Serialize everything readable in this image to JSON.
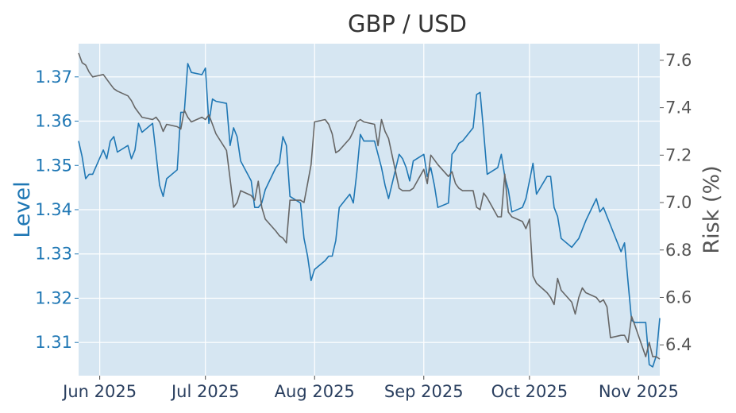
{
  "chart_data": {
    "type": "line",
    "title": "GBP / USD",
    "xlabel": "",
    "ylabel_left": "Level",
    "ylabel_right": "Risk (%)",
    "x_tick_labels": [
      "Jun 2025",
      "Jul 2025",
      "Aug 2025",
      "Sep 2025",
      "Oct 2025",
      "Nov 2025"
    ],
    "x_tick_dates": [
      "2025-06-01",
      "2025-07-01",
      "2025-08-01",
      "2025-09-01",
      "2025-10-01",
      "2025-11-01"
    ],
    "xlim": [
      "2025-05-26",
      "2025-11-07"
    ],
    "ylim_left": [
      1.3025,
      1.3775
    ],
    "ylim_right": [
      6.27,
      7.67
    ],
    "y_ticks_left": [
      "1.31",
      "1.32",
      "1.33",
      "1.34",
      "1.35",
      "1.36",
      "1.37"
    ],
    "y_ticks_right": [
      "6.4",
      "6.6",
      "6.8",
      "7.0",
      "7.2",
      "7.4",
      "7.6"
    ],
    "grid": true,
    "legend": "none",
    "colors": {
      "level": "#1f77b4",
      "risk": "#666666",
      "plot_bg": "#d6e6f2",
      "left_axis": "#1f77b4",
      "right_axis": "#555555"
    },
    "series": [
      {
        "axis": "left",
        "points": [
          [
            "2025-05-26",
            1.3555
          ],
          [
            "2025-05-27",
            1.352
          ],
          [
            "2025-05-28",
            1.347
          ],
          [
            "2025-05-29",
            1.348
          ],
          [
            "2025-05-30",
            1.348
          ],
          [
            "2025-06-02",
            1.3535
          ],
          [
            "2025-06-03",
            1.3515
          ],
          [
            "2025-06-04",
            1.3555
          ],
          [
            "2025-06-05",
            1.3565
          ],
          [
            "2025-06-06",
            1.353
          ],
          [
            "2025-06-09",
            1.3545
          ],
          [
            "2025-06-10",
            1.3515
          ],
          [
            "2025-06-11",
            1.3535
          ],
          [
            "2025-06-12",
            1.3595
          ],
          [
            "2025-06-13",
            1.3575
          ],
          [
            "2025-06-16",
            1.3595
          ],
          [
            "2025-06-17",
            1.3525
          ],
          [
            "2025-06-18",
            1.3455
          ],
          [
            "2025-06-19",
            1.343
          ],
          [
            "2025-06-20",
            1.347
          ],
          [
            "2025-06-23",
            1.349
          ],
          [
            "2025-06-24",
            1.362
          ],
          [
            "2025-06-25",
            1.362
          ],
          [
            "2025-06-26",
            1.373
          ],
          [
            "2025-06-27",
            1.371
          ],
          [
            "2025-06-30",
            1.3705
          ],
          [
            "2025-07-01",
            1.372
          ],
          [
            "2025-07-02",
            1.3595
          ],
          [
            "2025-07-03",
            1.365
          ],
          [
            "2025-07-04",
            1.3645
          ],
          [
            "2025-07-07",
            1.364
          ],
          [
            "2025-07-08",
            1.3545
          ],
          [
            "2025-07-09",
            1.3585
          ],
          [
            "2025-07-10",
            1.3565
          ],
          [
            "2025-07-11",
            1.351
          ],
          [
            "2025-07-14",
            1.3465
          ],
          [
            "2025-07-15",
            1.3405
          ],
          [
            "2025-07-16",
            1.3405
          ],
          [
            "2025-07-17",
            1.3415
          ],
          [
            "2025-07-18",
            1.3445
          ],
          [
            "2025-07-21",
            1.3495
          ],
          [
            "2025-07-22",
            1.3505
          ],
          [
            "2025-07-23",
            1.3565
          ],
          [
            "2025-07-24",
            1.3545
          ],
          [
            "2025-07-25",
            1.343
          ],
          [
            "2025-07-28",
            1.3415
          ],
          [
            "2025-07-29",
            1.3335
          ],
          [
            "2025-07-30",
            1.3295
          ],
          [
            "2025-07-31",
            1.324
          ],
          [
            "2025-08-01",
            1.3265
          ],
          [
            "2025-08-04",
            1.3285
          ],
          [
            "2025-08-05",
            1.3295
          ],
          [
            "2025-08-06",
            1.3295
          ],
          [
            "2025-08-07",
            1.333
          ],
          [
            "2025-08-08",
            1.3405
          ],
          [
            "2025-08-11",
            1.3435
          ],
          [
            "2025-08-12",
            1.3415
          ],
          [
            "2025-08-13",
            1.3485
          ],
          [
            "2025-08-14",
            1.357
          ],
          [
            "2025-08-15",
            1.3555
          ],
          [
            "2025-08-18",
            1.3555
          ],
          [
            "2025-08-19",
            1.3525
          ],
          [
            "2025-08-20",
            1.3495
          ],
          [
            "2025-08-21",
            1.3455
          ],
          [
            "2025-08-22",
            1.3425
          ],
          [
            "2025-08-25",
            1.3525
          ],
          [
            "2025-08-26",
            1.3515
          ],
          [
            "2025-08-27",
            1.3495
          ],
          [
            "2025-08-28",
            1.3465
          ],
          [
            "2025-08-29",
            1.351
          ],
          [
            "2025-09-01",
            1.3525
          ],
          [
            "2025-09-02",
            1.3475
          ],
          [
            "2025-09-03",
            1.3495
          ],
          [
            "2025-09-04",
            1.3455
          ],
          [
            "2025-09-05",
            1.3405
          ],
          [
            "2025-09-08",
            1.3415
          ],
          [
            "2025-09-09",
            1.3525
          ],
          [
            "2025-09-10",
            1.3535
          ],
          [
            "2025-09-11",
            1.355
          ],
          [
            "2025-09-12",
            1.3555
          ],
          [
            "2025-09-15",
            1.3585
          ],
          [
            "2025-09-16",
            1.366
          ],
          [
            "2025-09-17",
            1.3665
          ],
          [
            "2025-09-18",
            1.3575
          ],
          [
            "2025-09-19",
            1.348
          ],
          [
            "2025-09-22",
            1.3495
          ],
          [
            "2025-09-23",
            1.3525
          ],
          [
            "2025-09-24",
            1.3475
          ],
          [
            "2025-09-25",
            1.3445
          ],
          [
            "2025-09-26",
            1.3395
          ],
          [
            "2025-09-29",
            1.3405
          ],
          [
            "2025-09-30",
            1.3425
          ],
          [
            "2025-10-01",
            1.3465
          ],
          [
            "2025-10-02",
            1.3505
          ],
          [
            "2025-10-03",
            1.3435
          ],
          [
            "2025-10-06",
            1.3475
          ],
          [
            "2025-10-07",
            1.3475
          ],
          [
            "2025-10-08",
            1.3405
          ],
          [
            "2025-10-09",
            1.3385
          ],
          [
            "2025-10-10",
            1.3335
          ],
          [
            "2025-10-13",
            1.3315
          ],
          [
            "2025-10-14",
            1.3325
          ],
          [
            "2025-10-15",
            1.3335
          ],
          [
            "2025-10-16",
            1.3355
          ],
          [
            "2025-10-17",
            1.3375
          ],
          [
            "2025-10-20",
            1.3425
          ],
          [
            "2025-10-21",
            1.3395
          ],
          [
            "2025-10-22",
            1.3405
          ],
          [
            "2025-10-23",
            1.3385
          ],
          [
            "2025-10-24",
            1.3365
          ],
          [
            "2025-10-27",
            1.3305
          ],
          [
            "2025-10-28",
            1.3325
          ],
          [
            "2025-10-29",
            1.3235
          ],
          [
            "2025-10-30",
            1.315
          ],
          [
            "2025-10-31",
            1.3145
          ],
          [
            "2025-11-03",
            1.3145
          ],
          [
            "2025-11-04",
            1.305
          ],
          [
            "2025-11-05",
            1.3045
          ],
          [
            "2025-11-06",
            1.307
          ],
          [
            "2025-11-07",
            1.3155
          ]
        ]
      },
      {
        "axis": "right",
        "points": [
          [
            "2025-05-26",
            7.63
          ],
          [
            "2025-05-27",
            7.59
          ],
          [
            "2025-05-28",
            7.58
          ],
          [
            "2025-05-29",
            7.55
          ],
          [
            "2025-05-30",
            7.53
          ],
          [
            "2025-06-02",
            7.54
          ],
          [
            "2025-06-03",
            7.52
          ],
          [
            "2025-06-04",
            7.5
          ],
          [
            "2025-06-05",
            7.48
          ],
          [
            "2025-06-06",
            7.47
          ],
          [
            "2025-06-09",
            7.45
          ],
          [
            "2025-06-10",
            7.43
          ],
          [
            "2025-06-11",
            7.4
          ],
          [
            "2025-06-12",
            7.38
          ],
          [
            "2025-06-13",
            7.36
          ],
          [
            "2025-06-16",
            7.35
          ],
          [
            "2025-06-17",
            7.36
          ],
          [
            "2025-06-18",
            7.34
          ],
          [
            "2025-06-19",
            7.3
          ],
          [
            "2025-06-20",
            7.33
          ],
          [
            "2025-06-23",
            7.32
          ],
          [
            "2025-06-24",
            7.31
          ],
          [
            "2025-06-25",
            7.39
          ],
          [
            "2025-06-26",
            7.36
          ],
          [
            "2025-06-27",
            7.34
          ],
          [
            "2025-06-30",
            7.36
          ],
          [
            "2025-07-01",
            7.35
          ],
          [
            "2025-07-02",
            7.37
          ],
          [
            "2025-07-03",
            7.33
          ],
          [
            "2025-07-04",
            7.29
          ],
          [
            "2025-07-07",
            7.22
          ],
          [
            "2025-07-08",
            7.1
          ],
          [
            "2025-07-09",
            6.98
          ],
          [
            "2025-07-10",
            7.0
          ],
          [
            "2025-07-11",
            7.05
          ],
          [
            "2025-07-14",
            7.03
          ],
          [
            "2025-07-15",
            7.01
          ],
          [
            "2025-07-16",
            7.09
          ],
          [
            "2025-07-17",
            6.98
          ],
          [
            "2025-07-18",
            6.93
          ],
          [
            "2025-07-21",
            6.88
          ],
          [
            "2025-07-22",
            6.86
          ],
          [
            "2025-07-23",
            6.85
          ],
          [
            "2025-07-24",
            6.83
          ],
          [
            "2025-07-25",
            7.01
          ],
          [
            "2025-07-28",
            7.01
          ],
          [
            "2025-07-29",
            7.0
          ],
          [
            "2025-07-30",
            7.08
          ],
          [
            "2025-07-31",
            7.16
          ],
          [
            "2025-08-01",
            7.34
          ],
          [
            "2025-08-04",
            7.35
          ],
          [
            "2025-08-05",
            7.33
          ],
          [
            "2025-08-06",
            7.29
          ],
          [
            "2025-08-07",
            7.21
          ],
          [
            "2025-08-08",
            7.22
          ],
          [
            "2025-08-11",
            7.27
          ],
          [
            "2025-08-12",
            7.3
          ],
          [
            "2025-08-13",
            7.34
          ],
          [
            "2025-08-14",
            7.35
          ],
          [
            "2025-08-15",
            7.34
          ],
          [
            "2025-08-18",
            7.33
          ],
          [
            "2025-08-19",
            7.24
          ],
          [
            "2025-08-20",
            7.35
          ],
          [
            "2025-08-21",
            7.3
          ],
          [
            "2025-08-22",
            7.27
          ],
          [
            "2025-08-25",
            7.06
          ],
          [
            "2025-08-26",
            7.05
          ],
          [
            "2025-08-27",
            7.05
          ],
          [
            "2025-08-28",
            7.05
          ],
          [
            "2025-08-29",
            7.06
          ],
          [
            "2025-09-01",
            7.14
          ],
          [
            "2025-09-02",
            7.08
          ],
          [
            "2025-09-03",
            7.2
          ],
          [
            "2025-09-04",
            7.18
          ],
          [
            "2025-09-05",
            7.16
          ],
          [
            "2025-09-08",
            7.11
          ],
          [
            "2025-09-09",
            7.13
          ],
          [
            "2025-09-10",
            7.08
          ],
          [
            "2025-09-11",
            7.06
          ],
          [
            "2025-09-12",
            7.05
          ],
          [
            "2025-09-15",
            7.05
          ],
          [
            "2025-09-16",
            6.98
          ],
          [
            "2025-09-17",
            6.97
          ],
          [
            "2025-09-18",
            7.04
          ],
          [
            "2025-09-19",
            7.02
          ],
          [
            "2025-09-22",
            6.94
          ],
          [
            "2025-09-23",
            6.94
          ],
          [
            "2025-09-24",
            7.12
          ],
          [
            "2025-09-25",
            6.96
          ],
          [
            "2025-09-26",
            6.94
          ],
          [
            "2025-09-29",
            6.92
          ],
          [
            "2025-09-30",
            6.89
          ],
          [
            "2025-10-01",
            6.93
          ],
          [
            "2025-10-02",
            6.69
          ],
          [
            "2025-10-03",
            6.66
          ],
          [
            "2025-10-06",
            6.62
          ],
          [
            "2025-10-07",
            6.6
          ],
          [
            "2025-10-08",
            6.57
          ],
          [
            "2025-10-09",
            6.68
          ],
          [
            "2025-10-10",
            6.63
          ],
          [
            "2025-10-13",
            6.58
          ],
          [
            "2025-10-14",
            6.53
          ],
          [
            "2025-10-15",
            6.6
          ],
          [
            "2025-10-16",
            6.64
          ],
          [
            "2025-10-17",
            6.62
          ],
          [
            "2025-10-20",
            6.6
          ],
          [
            "2025-10-21",
            6.58
          ],
          [
            "2025-10-22",
            6.59
          ],
          [
            "2025-10-23",
            6.56
          ],
          [
            "2025-10-24",
            6.43
          ],
          [
            "2025-10-27",
            6.44
          ],
          [
            "2025-10-28",
            6.44
          ],
          [
            "2025-10-29",
            6.41
          ],
          [
            "2025-10-30",
            6.52
          ],
          [
            "2025-10-31",
            6.48
          ],
          [
            "2025-11-03",
            6.35
          ],
          [
            "2025-11-04",
            6.41
          ],
          [
            "2025-11-05",
            6.35
          ],
          [
            "2025-11-06",
            6.35
          ],
          [
            "2025-11-07",
            6.34
          ]
        ]
      }
    ]
  }
}
